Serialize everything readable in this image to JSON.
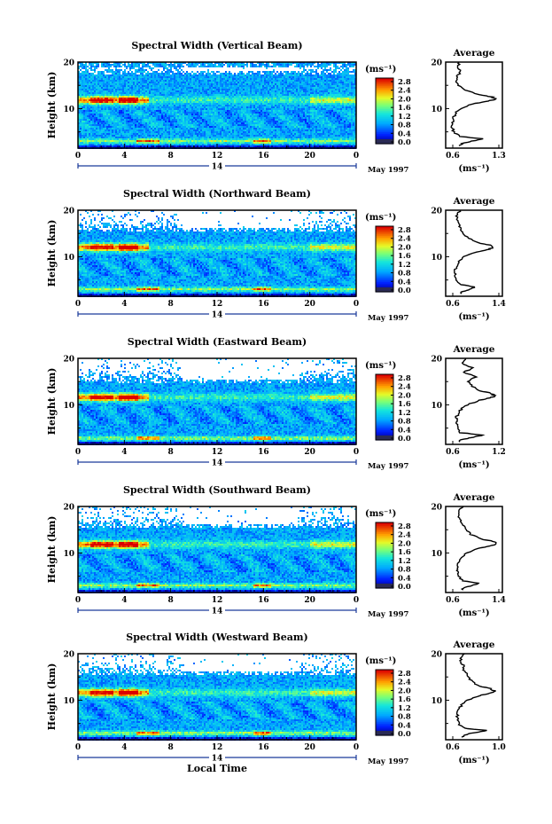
{
  "chart_data": [
    {
      "type": "heatmap",
      "title": "Spectral Width (Vertical Beam)",
      "ylabel": "Height (km)",
      "xlabel": "",
      "x_ticks": [
        "0",
        "4",
        "8",
        "12",
        "16",
        "20",
        "0"
      ],
      "y_ticks": [
        "20",
        "10"
      ],
      "date_day": "14",
      "date_label": "May 1997",
      "xlim": [
        0,
        24
      ],
      "ylim": [
        1.5,
        20
      ],
      "colorbar": {
        "unit": "(ms⁻¹)",
        "ticks": [
          "2.8",
          "2.4",
          "2.0",
          "1.6",
          "1.2",
          "0.8",
          "0.4",
          "0.0"
        ],
        "range": [
          0.0,
          3.0
        ]
      },
      "features": {
        "enhanced_band_km": 12,
        "low_band_km": 3.2,
        "blank_top_km": 17.5,
        "noise_ratio": 0.1
      },
      "average_profile": {
        "title": "Average",
        "xlabel": "(ms⁻¹)",
        "x_ticks": [
          "0.6",
          "1.3"
        ],
        "xlim": [
          0.5,
          1.35
        ],
        "y_ticks": [
          "20",
          "10"
        ],
        "height_km": [
          2,
          2.5,
          3,
          3.5,
          4,
          5,
          6,
          7,
          8,
          9,
          10,
          11,
          11.5,
          12,
          12.5,
          13,
          14,
          15,
          16,
          17,
          18,
          19,
          20
        ],
        "width_ms": [
          0.7,
          0.75,
          0.9,
          1.05,
          0.72,
          0.62,
          0.6,
          0.6,
          0.62,
          0.65,
          0.72,
          0.9,
          1.1,
          1.25,
          1.2,
          1.0,
          0.78,
          0.7,
          0.65,
          0.68,
          0.72,
          0.68,
          0.7
        ]
      }
    },
    {
      "type": "heatmap",
      "title": "Spectral Width (Northward Beam)",
      "ylabel": "Height (km)",
      "xlabel": "",
      "x_ticks": [
        "0",
        "4",
        "8",
        "12",
        "16",
        "20",
        "0"
      ],
      "y_ticks": [
        "20",
        "10"
      ],
      "date_day": "14",
      "date_label": "May 1997",
      "xlim": [
        0,
        24
      ],
      "ylim": [
        1.5,
        20
      ],
      "colorbar": {
        "unit": "(ms⁻¹)",
        "ticks": [
          "2.8",
          "2.4",
          "2.0",
          "1.6",
          "1.2",
          "0.8",
          "0.4",
          "0.0"
        ],
        "range": [
          0.0,
          3.0
        ]
      },
      "features": {
        "enhanced_band_km": 12.2,
        "low_band_km": 3.2,
        "blank_top_km": 15.5,
        "noise_ratio": 0.35
      },
      "average_profile": {
        "title": "Average",
        "xlabel": "(ms⁻¹)",
        "x_ticks": [
          "0.6",
          "1.4"
        ],
        "xlim": [
          0.5,
          1.45
        ],
        "y_ticks": [
          "20",
          "10"
        ],
        "height_km": [
          2,
          2.5,
          3,
          3.5,
          4,
          5,
          6,
          7,
          8,
          9,
          10,
          11,
          11.5,
          12,
          12.5,
          13,
          14,
          15,
          16,
          17,
          18,
          19,
          20
        ],
        "width_ms": [
          0.75,
          0.78,
          0.9,
          1.0,
          0.75,
          0.68,
          0.66,
          0.66,
          0.68,
          0.72,
          0.8,
          1.0,
          1.2,
          1.3,
          1.25,
          1.05,
          0.88,
          0.8,
          0.75,
          0.72,
          0.7,
          0.68,
          0.75
        ]
      }
    },
    {
      "type": "heatmap",
      "title": "Spectral Width (Eastward Beam)",
      "ylabel": "Height (km)",
      "xlabel": "",
      "x_ticks": [
        "0",
        "4",
        "8",
        "12",
        "16",
        "20",
        "0"
      ],
      "y_ticks": [
        "20",
        "10"
      ],
      "date_day": "14",
      "date_label": "May 1997",
      "xlim": [
        0,
        24
      ],
      "ylim": [
        1.5,
        20
      ],
      "colorbar": {
        "unit": "(ms⁻¹)",
        "ticks": [
          "2.8",
          "2.4",
          "2.0",
          "1.6",
          "1.2",
          "0.8",
          "0.4",
          "0.0"
        ],
        "range": [
          0.0,
          3.0
        ]
      },
      "features": {
        "enhanced_band_km": 11.8,
        "low_band_km": 3.0,
        "blank_top_km": 15.0,
        "noise_ratio": 0.4
      },
      "average_profile": {
        "title": "Average",
        "xlabel": "(ms⁻¹)",
        "x_ticks": [
          "0.6",
          "1.2"
        ],
        "xlim": [
          0.5,
          1.25
        ],
        "y_ticks": [
          "20",
          "10"
        ],
        "height_km": [
          2,
          2.5,
          3,
          3.5,
          4,
          5,
          6,
          7,
          8,
          9,
          10,
          11,
          11.5,
          12,
          12.5,
          13,
          14,
          15,
          16,
          17,
          18,
          19,
          20
        ],
        "width_ms": [
          0.68,
          0.7,
          0.85,
          1.0,
          0.7,
          0.65,
          0.64,
          0.64,
          0.66,
          0.7,
          0.78,
          0.95,
          1.1,
          1.15,
          1.1,
          0.95,
          0.85,
          0.8,
          0.9,
          0.75,
          0.85,
          0.72,
          0.78
        ]
      }
    },
    {
      "type": "heatmap",
      "title": "Spectral Width (Southward Beam)",
      "ylabel": "Height (km)",
      "xlabel": "",
      "x_ticks": [
        "0",
        "4",
        "8",
        "12",
        "16",
        "20",
        "0"
      ],
      "y_ticks": [
        "20",
        "10"
      ],
      "date_day": "14",
      "date_label": "May 1997",
      "xlim": [
        0,
        24
      ],
      "ylim": [
        1.5,
        20
      ],
      "colorbar": {
        "unit": "(ms⁻¹)",
        "ticks": [
          "2.8",
          "2.4",
          "2.0",
          "1.6",
          "1.2",
          "0.8",
          "0.4",
          "0.0"
        ],
        "range": [
          0.0,
          3.0
        ]
      },
      "features": {
        "enhanced_band_km": 12.0,
        "low_band_km": 3.2,
        "blank_top_km": 15.5,
        "noise_ratio": 0.38
      },
      "average_profile": {
        "title": "Average",
        "xlabel": "(ms⁻¹)",
        "x_ticks": [
          "0.6",
          "1.4"
        ],
        "xlim": [
          0.5,
          1.45
        ],
        "y_ticks": [
          "20",
          "10"
        ],
        "height_km": [
          2,
          2.5,
          3,
          3.5,
          4,
          5,
          6,
          7,
          8,
          9,
          10,
          11,
          11.5,
          12,
          12.5,
          13,
          14,
          15,
          16,
          17,
          18,
          19,
          20
        ],
        "width_ms": [
          0.78,
          0.8,
          0.95,
          1.05,
          0.78,
          0.72,
          0.7,
          0.7,
          0.72,
          0.76,
          0.85,
          1.05,
          1.25,
          1.35,
          1.3,
          1.1,
          0.92,
          0.85,
          0.78,
          0.75,
          0.72,
          0.7,
          0.78
        ]
      }
    },
    {
      "type": "heatmap",
      "title": "Spectral Width (Westward Beam)",
      "ylabel": "Height (km)",
      "xlabel": "Local Time",
      "x_ticks": [
        "0",
        "4",
        "8",
        "12",
        "16",
        "20",
        "0"
      ],
      "y_ticks": [
        "20",
        "10"
      ],
      "date_day": "14",
      "date_label": "May 1997",
      "xlim": [
        0,
        24
      ],
      "ylim": [
        1.5,
        20
      ],
      "colorbar": {
        "unit": "(ms⁻¹)",
        "ticks": [
          "2.8",
          "2.4",
          "2.0",
          "1.6",
          "1.2",
          "0.8",
          "0.4",
          "0.0"
        ],
        "range": [
          0.0,
          3.0
        ]
      },
      "features": {
        "enhanced_band_km": 11.8,
        "low_band_km": 3.1,
        "blank_top_km": 15.5,
        "noise_ratio": 0.42
      },
      "average_profile": {
        "title": "Average",
        "xlabel": "(ms⁻¹)",
        "x_ticks": [
          "0.6",
          "1.0"
        ],
        "xlim": [
          0.5,
          1.2
        ],
        "y_ticks": [
          "20",
          "10"
        ],
        "height_km": [
          2,
          2.5,
          3,
          3.5,
          4,
          5,
          6,
          7,
          8,
          9,
          10,
          11,
          11.5,
          12,
          12.5,
          13,
          14,
          15,
          16,
          17,
          18,
          19,
          20
        ],
        "width_ms": [
          0.7,
          0.72,
          0.85,
          1.0,
          0.72,
          0.66,
          0.64,
          0.64,
          0.66,
          0.7,
          0.78,
          0.92,
          1.05,
          1.1,
          1.05,
          0.92,
          0.82,
          0.78,
          0.74,
          0.72,
          0.7,
          0.68,
          0.72
        ]
      }
    }
  ]
}
